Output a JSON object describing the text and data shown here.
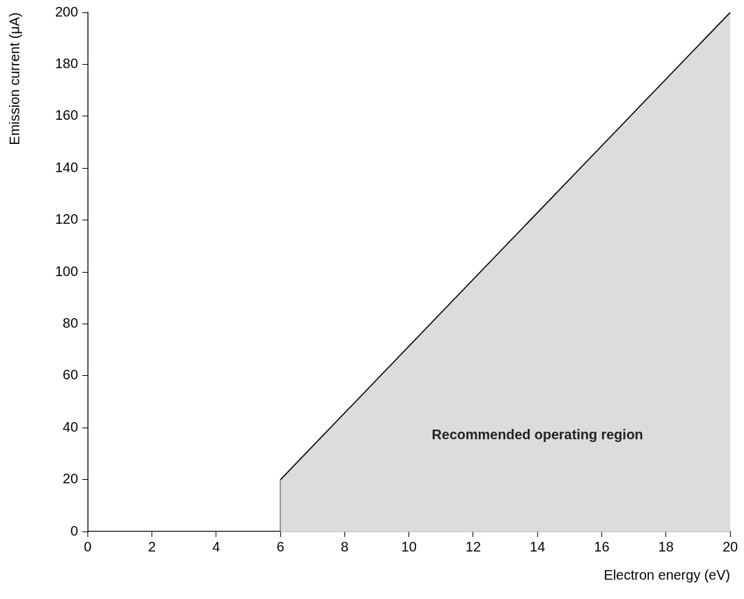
{
  "chart_data": {
    "type": "area",
    "xlabel": "Electron energy (eV)",
    "ylabel": "Emission current (μA)",
    "series": [
      {
        "color": "#dcdcdc",
        "values": [
          20,
          200
        ]
      },
      {
        "type": "line",
        "color": "#000000",
        "x": [
          6,
          6
        ],
        "values": [
          0,
          20
        ]
      }
    ],
    "x": [
      6,
      20
    ],
    "xlim": [
      0,
      20
    ],
    "ylim": [
      0,
      200
    ],
    "xticks": [
      0,
      2,
      4,
      6,
      8,
      10,
      12,
      14,
      16,
      18,
      20
    ],
    "yticks": [
      0,
      20,
      40,
      60,
      80,
      100,
      120,
      140,
      160,
      180,
      200
    ],
    "grid": false,
    "marker": "none",
    "line_style": "solid",
    "annotations": [
      "Recommended operating region"
    ]
  }
}
